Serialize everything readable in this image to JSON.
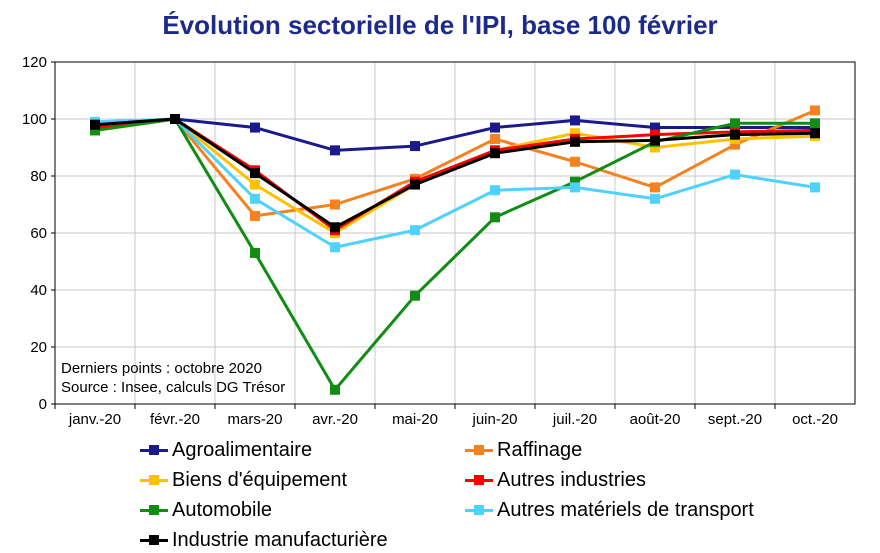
{
  "chart_data": {
    "type": "line",
    "title": "Évolution sectorielle de l'IPI, base 100 février",
    "categories": [
      "janv.-20",
      "févr.-20",
      "mars-20",
      "avr.-20",
      "mai-20",
      "juin-20",
      "juil.-20",
      "août-20",
      "sept.-20",
      "oct.-20"
    ],
    "y_ticks": [
      "0",
      "20",
      "40",
      "60",
      "80",
      "100",
      "120"
    ],
    "ylim": [
      0,
      120
    ],
    "grid": true,
    "legend_position": "bottom",
    "annotations": [
      "Derniers points : octobre 2020",
      "Source : Insee, calculs DG Trésor"
    ],
    "series": [
      {
        "name": "Agroalimentaire",
        "color": "#1a1a8c",
        "values": [
          98,
          100,
          97,
          89,
          90.5,
          97,
          99.5,
          97,
          97,
          97
        ]
      },
      {
        "name": "Raffinage",
        "color": "#f58220",
        "values": [
          96,
          100,
          66,
          70,
          79,
          93,
          85,
          76,
          91,
          103
        ]
      },
      {
        "name": "Biens d'équipement",
        "color": "#ffc000",
        "values": [
          96,
          100,
          77,
          60,
          77,
          89,
          95,
          90,
          93,
          94
        ]
      },
      {
        "name": "Autres industries",
        "color": "#ff0000",
        "values": [
          97,
          100,
          82,
          61,
          78,
          89,
          93,
          94.5,
          95.5,
          96
        ]
      },
      {
        "name": "Automobile",
        "color": "#128c12",
        "values": [
          96,
          100,
          53,
          5,
          38,
          65.5,
          78,
          92,
          98.5,
          98.5
        ]
      },
      {
        "name": "Autres matériels de transport",
        "color": "#4fd2ff",
        "values": [
          99,
          100,
          72,
          55,
          61,
          75,
          76,
          72,
          80.5,
          76
        ]
      },
      {
        "name": "Industrie manufacturière",
        "color": "#000000",
        "values": [
          98,
          100,
          81,
          62,
          77,
          88,
          92,
          92.5,
          94.5,
          95
        ]
      }
    ]
  }
}
